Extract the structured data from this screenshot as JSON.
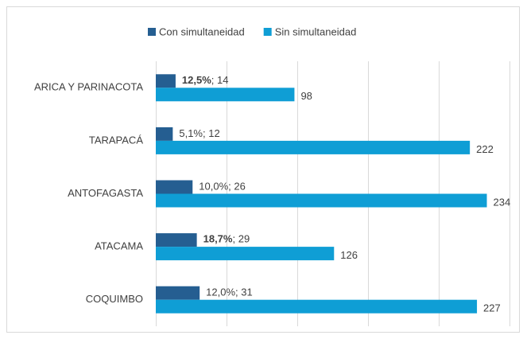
{
  "chart_data": {
    "type": "bar",
    "orientation": "horizontal",
    "categories": [
      "ARICA Y PARINACOTA",
      "TARAPACÁ",
      "ANTOFAGASTA",
      "ATACAMA",
      "COQUIMBO"
    ],
    "series": [
      {
        "name": "Con simultaneidad",
        "color": "#255e91",
        "values": [
          14,
          12,
          26,
          29,
          31
        ],
        "value_labels": [
          "12,5%; 14",
          "5,1%; 12",
          "10,0%; 26",
          "18,7%; 29",
          "12,0%; 31"
        ],
        "bold_percent": [
          true,
          false,
          false,
          true,
          false
        ]
      },
      {
        "name": "Sin simultaneidad",
        "color": "#0f9ed5",
        "values": [
          98,
          222,
          234,
          126,
          227
        ]
      }
    ],
    "xlim": [
      0,
      250
    ],
    "xticks": [
      0,
      50,
      100,
      150,
      200,
      250
    ],
    "grid": true,
    "legend": "top"
  }
}
